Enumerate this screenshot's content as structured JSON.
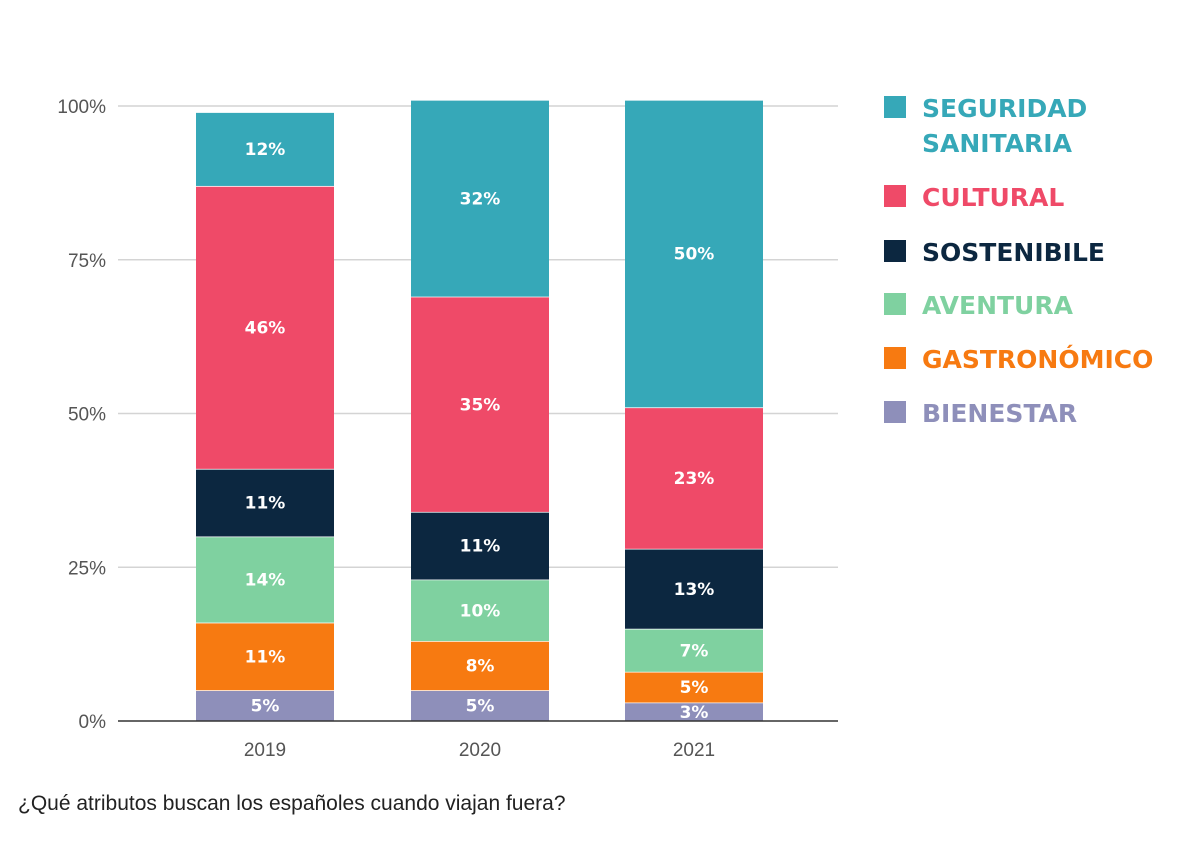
{
  "caption": "¿Qué atributos buscan los españoles cuando viajan fuera?",
  "chart_data": {
    "type": "bar",
    "stacked": true,
    "normalized": true,
    "categories": [
      "2019",
      "2020",
      "2021"
    ],
    "y_ticks": [
      "0%",
      "25%",
      "50%",
      "75%",
      "100%"
    ],
    "ylim": [
      0,
      100
    ],
    "grid": true,
    "legend_position": "right",
    "series": [
      {
        "name": "BIENESTAR",
        "color": "#8e8fba",
        "values": [
          5,
          5,
          3
        ],
        "labels": [
          "5%",
          "5%",
          "3%"
        ]
      },
      {
        "name": "GASTRONÓMICO",
        "color": "#f77a11",
        "values": [
          11,
          8,
          5
        ],
        "labels": [
          "11%",
          "8%",
          "5%"
        ]
      },
      {
        "name": "AVENTURA",
        "color": "#7fd1a0",
        "values": [
          14,
          10,
          7
        ],
        "labels": [
          "14%",
          "10%",
          "7%"
        ]
      },
      {
        "name": "SOSTENIBILE",
        "color": "#0c2740",
        "values": [
          11,
          11,
          13
        ],
        "labels": [
          "11%",
          "11%",
          "13%"
        ]
      },
      {
        "name": "CULTURAL",
        "color": "#ef4a68",
        "values": [
          46,
          35,
          23
        ],
        "labels": [
          "46%",
          "35%",
          "23%"
        ]
      },
      {
        "name": "SEGURIDAD SANITARIA",
        "color": "#36a8b8",
        "values": [
          12,
          32,
          50
        ],
        "labels": [
          "12%",
          "32%",
          "50%"
        ]
      }
    ],
    "legend_order": [
      "SEGURIDAD SANITARIA",
      "CULTURAL",
      "SOSTENIBILE",
      "AVENTURA",
      "GASTRONÓMICO",
      "BIENESTAR"
    ]
  }
}
